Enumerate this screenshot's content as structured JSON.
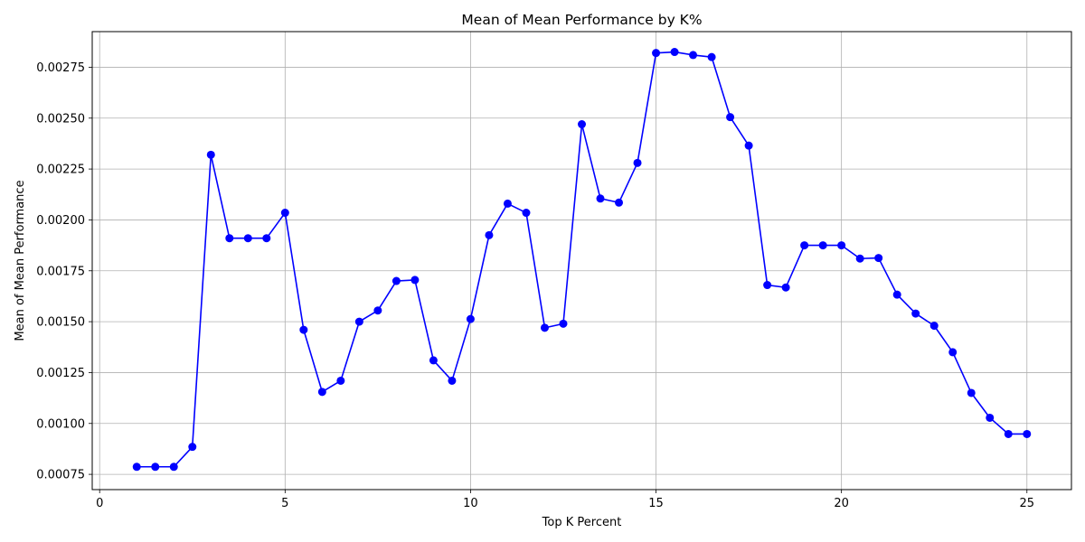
{
  "chart_data": {
    "type": "line",
    "title": "Mean of Mean Performance by K%",
    "xlabel": "Top K Percent",
    "ylabel": "Mean of Mean Performance",
    "xlim": [
      -0.2,
      26.2
    ],
    "ylim": [
      0.000675,
      0.002925
    ],
    "xticks": [
      0,
      5,
      10,
      15,
      20,
      25
    ],
    "xtick_labels": [
      "0",
      "5",
      "10",
      "15",
      "20",
      "25"
    ],
    "yticks": [
      0.00075,
      0.001,
      0.00125,
      0.0015,
      0.00175,
      0.002,
      0.00225,
      0.0025,
      0.00275
    ],
    "ytick_labels": [
      "0.00075",
      "0.00100",
      "0.00125",
      "0.00150",
      "0.00175",
      "0.00200",
      "0.00225",
      "0.00250",
      "0.00275"
    ],
    "grid": true,
    "line_color": "#0000ff",
    "grid_color": "#b0b0b0",
    "series": [
      {
        "x": [
          1,
          1.5,
          2,
          2.5,
          3,
          3.5,
          4,
          4.5,
          5,
          5.5,
          6,
          6.5,
          7,
          7.5,
          8,
          8.5,
          9,
          9.5,
          10,
          10.5,
          11,
          11.5,
          12,
          12.5,
          13,
          13.5,
          14,
          14.5,
          15,
          15.5,
          16,
          16.5,
          17,
          17.5,
          18,
          18.5,
          19,
          19.5,
          20,
          20.5,
          21,
          21.5,
          22,
          22.5,
          23,
          23.5,
          24,
          24.5,
          25
        ],
        "values": [
          0.000787,
          0.000787,
          0.000787,
          0.000885,
          0.00232,
          0.00191,
          0.00191,
          0.00191,
          0.002035,
          0.00146,
          0.001155,
          0.00121,
          0.0015,
          0.001555,
          0.0017,
          0.001705,
          0.00131,
          0.00121,
          0.001513,
          0.001925,
          0.00208,
          0.002035,
          0.00147,
          0.00149,
          0.00247,
          0.002105,
          0.002085,
          0.00228,
          0.00282,
          0.002825,
          0.00281,
          0.0028,
          0.002505,
          0.002365,
          0.00168,
          0.001668,
          0.001875,
          0.001875,
          0.001875,
          0.00181,
          0.001813,
          0.001633,
          0.00154,
          0.00148,
          0.00135,
          0.00115,
          0.001028,
          0.000948,
          0.000948
        ]
      }
    ]
  }
}
